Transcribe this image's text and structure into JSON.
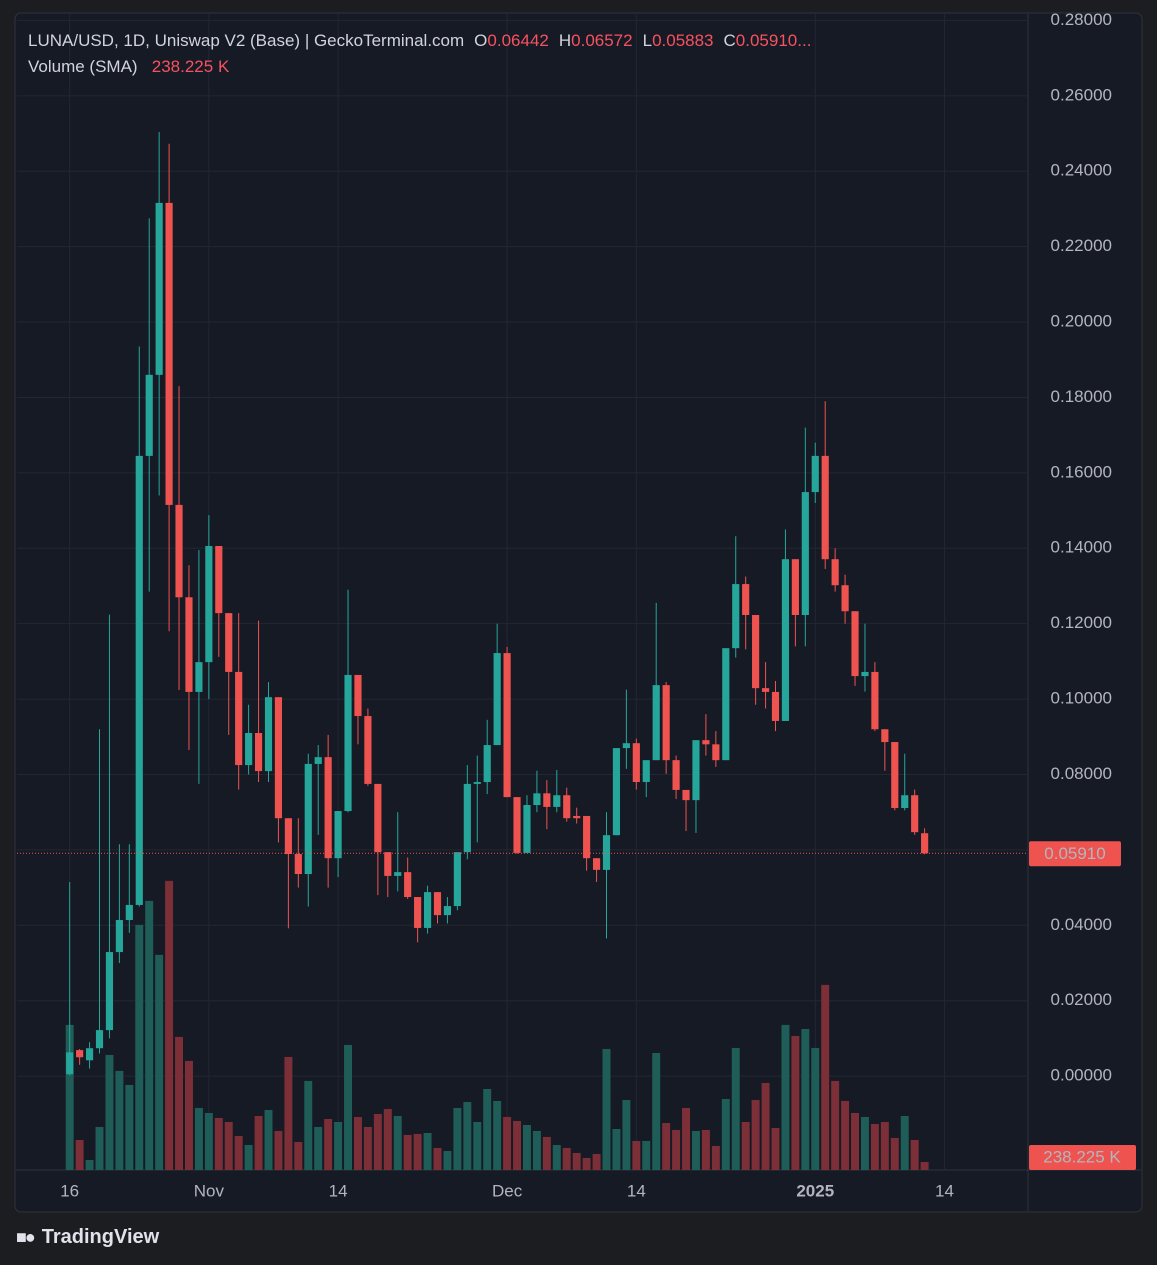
{
  "brand": "TradingView",
  "chart_data": {
    "type": "candlestick",
    "symbol_info": "LUNA/USD, 1D, Uniswap V2 (Base) | GeckoTerminal.com",
    "ohlc_legend": [
      {
        "key": "O",
        "value": 0.06442,
        "label": "0.06442"
      },
      {
        "key": "H",
        "value": 0.06572,
        "label": "0.06572"
      },
      {
        "key": "L",
        "value": 0.05883,
        "label": "0.05883"
      },
      {
        "key": "C",
        "value": 0.0591,
        "label": "0.05910..."
      }
    ],
    "indicator": {
      "name": "Volume (SMA)",
      "value": 238.225,
      "label": "238.225 K"
    },
    "last_price": {
      "value": 0.0591,
      "label": "0.05910"
    },
    "up_color": "#26a69a",
    "down_color": "#ef5350",
    "volume_up_color": "#1f5e58",
    "volume_down_color": "#7d2f38",
    "grid": true,
    "xlim": [
      -5.4,
      96.4
    ],
    "xticks": [
      {
        "value": 0,
        "label": "16"
      },
      {
        "value": 14,
        "label": "Nov"
      },
      {
        "value": 27,
        "label": "14"
      },
      {
        "value": 44,
        "label": "Dec"
      },
      {
        "value": 57,
        "label": "14"
      },
      {
        "value": 75,
        "label": "2025"
      },
      {
        "value": 88,
        "label": "14"
      }
    ],
    "ylim": [
      -0.0249,
      0.2817
    ],
    "yticks": [
      {
        "value": 0,
        "label": "0.00000"
      },
      {
        "value": 0.02,
        "label": "0.02000"
      },
      {
        "value": 0.04,
        "label": "0.04000"
      },
      {
        "value": 0.06,
        "label": "0.06000"
      },
      {
        "value": 0.08,
        "label": "0.08000"
      },
      {
        "value": 0.1,
        "label": "0.10000"
      },
      {
        "value": 0.12,
        "label": "0.12000"
      },
      {
        "value": 0.14,
        "label": "0.14000"
      },
      {
        "value": 0.16,
        "label": "0.16000"
      },
      {
        "value": 0.18,
        "label": "0.18000"
      },
      {
        "value": 0.2,
        "label": "0.20000"
      },
      {
        "value": 0.22,
        "label": "0.22000"
      },
      {
        "value": 0.24,
        "label": "0.24000"
      },
      {
        "value": 0.26,
        "label": "0.26000"
      },
      {
        "value": 0.28,
        "label": "0.28000"
      }
    ],
    "volume_lim": [
      0,
      6000
    ],
    "x": [
      0,
      1,
      2,
      3,
      4,
      5,
      6,
      7,
      8,
      9,
      10,
      11,
      12,
      13,
      14,
      15,
      16,
      17,
      18,
      19,
      20,
      21,
      22,
      23,
      24,
      25,
      26,
      27,
      28,
      29,
      30,
      31,
      32,
      33,
      34,
      35,
      36,
      37,
      38,
      39,
      40,
      41,
      42,
      43,
      44,
      45,
      46,
      47,
      48,
      49,
      50,
      51,
      52,
      53,
      54,
      55,
      56,
      57,
      58,
      59,
      60,
      61,
      62,
      63,
      64,
      65,
      66,
      67,
      68,
      69,
      70,
      71,
      72,
      73,
      74,
      75,
      76,
      77,
      78,
      79,
      80,
      81,
      82,
      83,
      84,
      85,
      86
    ],
    "open": [
      0.0005,
      0.0069,
      0.0042,
      0.0074,
      0.0122,
      0.0329,
      0.0414,
      0.0454,
      0.1645,
      0.186,
      0.2316,
      0.1515,
      0.127,
      0.1019,
      0.1098,
      0.1406,
      0.1228,
      0.1072,
      0.0825,
      0.091,
      0.0809,
      0.1005,
      0.0684,
      0.0589,
      0.0536,
      0.0828,
      0.0846,
      0.0578,
      0.0703,
      0.1064,
      0.0955,
      0.0775,
      0.0594,
      0.0531,
      0.0541,
      0.0475,
      0.0393,
      0.0488,
      0.0427,
      0.0451,
      0.0594,
      0.0775,
      0.078,
      0.0878,
      0.1122,
      0.074,
      0.0592,
      0.0719,
      0.075,
      0.0714,
      0.0745,
      0.069,
      0.069,
      0.0578,
      0.0547,
      0.0639,
      0.087,
      0.0883,
      0.078,
      0.0838,
      0.1037,
      0.0838,
      0.0759,
      0.0732,
      0.0891,
      0.088,
      0.0838,
      0.1135,
      0.1305,
      0.1223,
      0.1029,
      0.1019,
      0.0942,
      0.1371,
      0.1223,
      0.1549,
      0.1645,
      0.1371,
      0.1302,
      0.1233,
      0.1061,
      0.1072,
      0.092,
      0.0886,
      0.0711,
      0.0745,
      0.06442
    ],
    "high": [
      0.0515,
      0.0072,
      0.009,
      0.092,
      0.1224,
      0.0615,
      0.0615,
      0.1935,
      0.2275,
      0.2504,
      0.2473,
      0.183,
      0.1355,
      0.1395,
      0.1488,
      0.1406,
      0.1228,
      0.1228,
      0.0985,
      0.1208,
      0.1045,
      0.1005,
      0.0684,
      0.0684,
      0.0855,
      0.0878,
      0.0905,
      0.0703,
      0.129,
      0.1064,
      0.0975,
      0.0775,
      0.0594,
      0.07,
      0.058,
      0.0475,
      0.0505,
      0.0488,
      0.0475,
      0.0594,
      0.0825,
      0.085,
      0.0945,
      0.12,
      0.1138,
      0.074,
      0.0745,
      0.081,
      0.0785,
      0.0812,
      0.0765,
      0.0712,
      0.069,
      0.0578,
      0.07,
      0.087,
      0.1025,
      0.0895,
      0.0838,
      0.1255,
      0.1045,
      0.085,
      0.0759,
      0.0891,
      0.096,
      0.0915,
      0.1135,
      0.1432,
      0.1325,
      0.1223,
      0.1098,
      0.1048,
      0.145,
      0.1371,
      0.172,
      0.168,
      0.179,
      0.14,
      0.133,
      0.1233,
      0.12,
      0.1098,
      0.092,
      0.0886,
      0.0855,
      0.076,
      0.06572
    ],
    "low": [
      0.0002,
      0.003,
      0.002,
      0.006,
      0.01,
      0.03,
      0.038,
      0.045,
      0.1285,
      0.154,
      0.118,
      0.1024,
      0.0865,
      0.0775,
      0.1,
      0.1112,
      0.0905,
      0.076,
      0.08,
      0.078,
      0.078,
      0.062,
      0.0392,
      0.05,
      0.045,
      0.064,
      0.05,
      0.0528,
      0.07,
      0.088,
      0.077,
      0.048,
      0.0475,
      0.049,
      0.047,
      0.0355,
      0.0378,
      0.0405,
      0.0405,
      0.044,
      0.0575,
      0.062,
      0.0748,
      0.0878,
      0.074,
      0.059,
      0.0592,
      0.07,
      0.0655,
      0.07,
      0.0675,
      0.067,
      0.0545,
      0.0515,
      0.0365,
      0.0639,
      0.0815,
      0.076,
      0.074,
      0.0838,
      0.0802,
      0.0735,
      0.065,
      0.0645,
      0.085,
      0.082,
      0.0838,
      0.111,
      0.1132,
      0.0985,
      0.0975,
      0.0915,
      0.0942,
      0.114,
      0.114,
      0.152,
      0.1345,
      0.1285,
      0.12,
      0.1035,
      0.102,
      0.0915,
      0.081,
      0.0705,
      0.0705,
      0.064,
      0.05883
    ],
    "close": [
      0.0063,
      0.005,
      0.0074,
      0.0122,
      0.0329,
      0.0414,
      0.0454,
      0.1645,
      0.186,
      0.2316,
      0.1515,
      0.127,
      0.1019,
      0.1098,
      0.1406,
      0.1228,
      0.1072,
      0.0825,
      0.091,
      0.0809,
      0.1005,
      0.0684,
      0.0589,
      0.0536,
      0.0828,
      0.0846,
      0.0578,
      0.0703,
      0.1064,
      0.0955,
      0.0775,
      0.0594,
      0.0531,
      0.0541,
      0.0475,
      0.0393,
      0.0488,
      0.0427,
      0.0451,
      0.0594,
      0.0775,
      0.078,
      0.0878,
      0.1122,
      0.074,
      0.0592,
      0.0719,
      0.075,
      0.0714,
      0.0745,
      0.0684,
      0.0684,
      0.0578,
      0.0547,
      0.0639,
      0.087,
      0.0883,
      0.078,
      0.0838,
      0.1037,
      0.0838,
      0.0759,
      0.0732,
      0.0891,
      0.088,
      0.0838,
      0.1135,
      0.1305,
      0.1223,
      0.1029,
      0.1019,
      0.0942,
      0.1371,
      0.1223,
      0.1549,
      0.1645,
      0.1371,
      0.1302,
      0.1233,
      0.1061,
      0.1072,
      0.092,
      0.0886,
      0.0711,
      0.0745,
      0.0647,
      0.0591
    ],
    "volume": [
      2654,
      549,
      183,
      787,
      2105,
      1812,
      1556,
      4484,
      4923,
      3935,
      5289,
      2434,
      1995,
      1135,
      1043,
      952,
      878,
      622,
      458,
      988,
      1098,
      714,
      2068,
      512,
      1629,
      787,
      933,
      878,
      2288,
      970,
      787,
      1025,
      1116,
      988,
      641,
      659,
      677,
      403,
      348,
      1135,
      1244,
      878,
      1482,
      1263,
      970,
      897,
      824,
      714,
      604,
      458,
      403,
      311,
      220,
      293,
      2214,
      750,
      1281,
      531,
      531,
      2141,
      860,
      732,
      1135,
      714,
      732,
      439,
      1299,
      2233,
      878,
      1281,
      1592,
      769,
      2654,
      2452,
      2580,
      2233,
      3386,
      1629,
      1263,
      1043,
      970,
      842,
      878,
      586,
      988,
      549,
      146
    ]
  }
}
